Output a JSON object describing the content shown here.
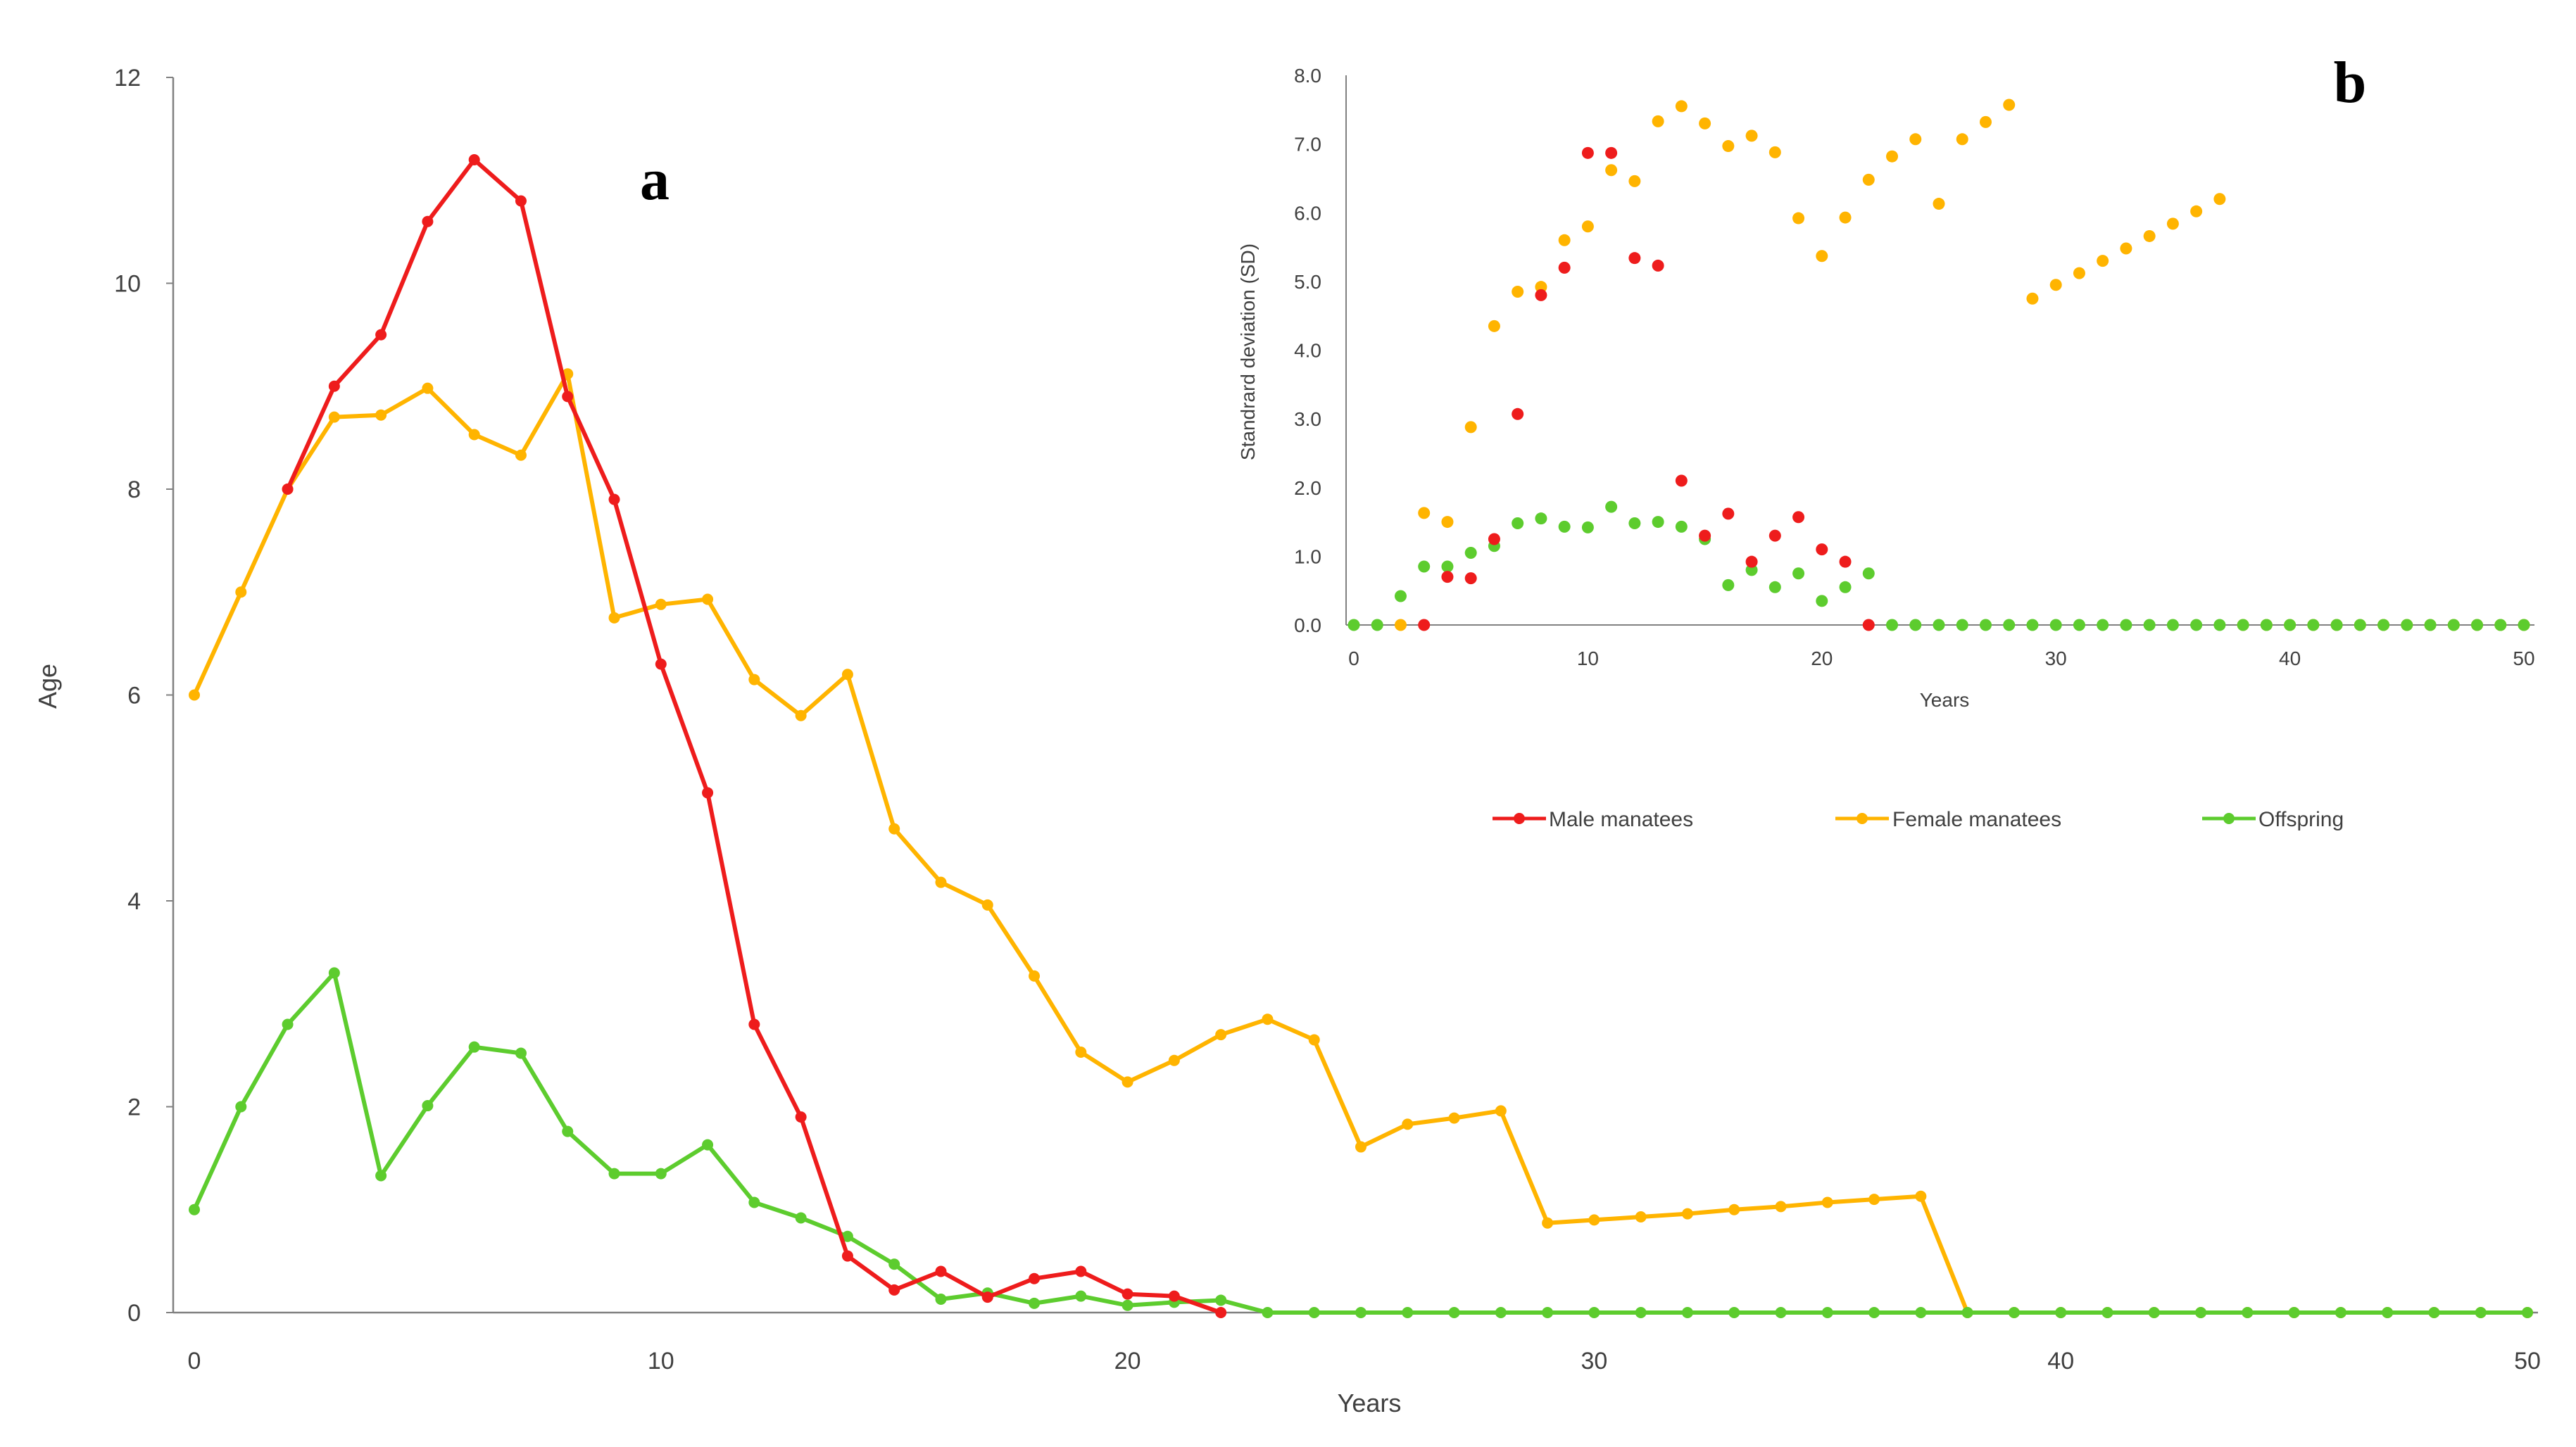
{
  "colors": {
    "male": "#ee1c1c",
    "female": "#ffb400",
    "offspring": "#5dcc2e",
    "axis": "#808080"
  },
  "legend": {
    "male_label": "Male manatees",
    "female_label": "Female manatees",
    "offspring_label": "Offspring"
  },
  "chart_data": [
    {
      "panel": "a",
      "type": "line",
      "title": "a",
      "xlabel": "Years",
      "ylabel": "Age",
      "xlim": [
        0,
        50
      ],
      "ylim": [
        0,
        12
      ],
      "xticks": [
        0,
        10,
        20,
        30,
        40,
        50
      ],
      "yticks": [
        0,
        2,
        4,
        6,
        8,
        10,
        12
      ],
      "series": [
        {
          "name": "Male manatees",
          "x": [
            2,
            3,
            4,
            5,
            6,
            7,
            8,
            9,
            10,
            11,
            12,
            13,
            14,
            15,
            16,
            17,
            18,
            19,
            20,
            21,
            22
          ],
          "values": [
            8.0,
            9.0,
            9.5,
            10.6,
            11.2,
            10.8,
            8.9,
            7.9,
            6.3,
            5.05,
            2.8,
            1.9,
            0.55,
            0.22,
            0.4,
            0.15,
            0.33,
            0.4,
            0.18,
            0.16,
            0
          ]
        },
        {
          "name": "Female manatees",
          "x": [
            0,
            1,
            2,
            3,
            4,
            5,
            6,
            7,
            8,
            9,
            10,
            11,
            12,
            13,
            14,
            15,
            16,
            17,
            18,
            19,
            20,
            21,
            22,
            23,
            24,
            25,
            26,
            27,
            28,
            29,
            30,
            31,
            32,
            33,
            34,
            35,
            36,
            37,
            38,
            39,
            40,
            41,
            42,
            43,
            44,
            45,
            46,
            47,
            48,
            49,
            50
          ],
          "values": [
            6.0,
            7.0,
            8.0,
            8.7,
            8.72,
            8.98,
            8.53,
            8.33,
            9.12,
            6.75,
            6.88,
            6.93,
            6.15,
            5.8,
            6.2,
            4.7,
            4.18,
            3.96,
            3.27,
            2.53,
            2.24,
            2.45,
            2.7,
            2.85,
            2.65,
            1.61,
            1.83,
            1.89,
            1.96,
            0.87,
            0.9,
            0.93,
            0.96,
            1.0,
            1.03,
            1.07,
            1.1,
            1.13,
            0,
            0,
            0,
            0,
            0,
            0,
            0,
            0,
            0,
            0,
            0,
            0,
            0
          ]
        },
        {
          "name": "Offspring",
          "x": [
            0,
            1,
            2,
            3,
            4,
            5,
            6,
            7,
            8,
            9,
            10,
            11,
            12,
            13,
            14,
            15,
            16,
            17,
            18,
            19,
            20,
            21,
            22,
            23,
            24,
            25,
            26,
            27,
            28,
            29,
            30,
            31,
            32,
            33,
            34,
            35,
            36,
            37,
            38,
            39,
            40,
            41,
            42,
            43,
            44,
            45,
            46,
            47,
            48,
            49,
            50
          ],
          "values": [
            1.0,
            2.0,
            2.8,
            3.3,
            1.33,
            2.01,
            2.58,
            2.52,
            1.76,
            1.35,
            1.35,
            1.63,
            1.07,
            0.92,
            0.74,
            0.47,
            0.13,
            0.19,
            0.09,
            0.16,
            0.07,
            0.1,
            0.12,
            0,
            0,
            0,
            0,
            0,
            0,
            0,
            0,
            0,
            0,
            0,
            0,
            0,
            0,
            0,
            0,
            0,
            0,
            0,
            0,
            0,
            0,
            0,
            0,
            0,
            0,
            0,
            0
          ]
        }
      ]
    },
    {
      "panel": "b",
      "type": "scatter",
      "title": "b",
      "xlabel": "Years",
      "ylabel": "Standrard deviation (SD)",
      "xlim": [
        0,
        50
      ],
      "ylim": [
        0,
        8
      ],
      "xticks": [
        0,
        10,
        20,
        30,
        40,
        50
      ],
      "yticks": [
        "0.0",
        "1.0",
        "2.0",
        "3.0",
        "4.0",
        "5.0",
        "6.0",
        "7.0",
        "8.0"
      ],
      "series": [
        {
          "name": "Male manatees",
          "x": [
            3,
            4,
            5,
            6,
            7,
            8,
            9,
            10,
            11,
            12,
            13,
            14,
            15,
            16,
            17,
            18,
            19,
            20,
            21,
            22
          ],
          "values": [
            0,
            0.7,
            0.68,
            1.25,
            3.07,
            4.8,
            5.2,
            6.87,
            6.87,
            5.34,
            5.23,
            2.1,
            1.3,
            1.62,
            0.92,
            1.3,
            1.57,
            1.1,
            0.92,
            0
          ]
        },
        {
          "name": "Female manatees",
          "x": [
            2,
            3,
            4,
            5,
            6,
            7,
            8,
            9,
            10,
            11,
            12,
            13,
            14,
            15,
            16,
            17,
            18,
            19,
            20,
            21,
            22,
            23,
            24,
            25,
            26,
            27,
            28,
            29,
            30,
            31,
            32,
            33,
            34,
            35,
            36,
            37,
            38,
            39,
            40,
            41,
            42,
            43,
            44,
            45,
            46,
            47,
            48,
            49,
            50
          ],
          "values": [
            0,
            1.63,
            1.5,
            2.88,
            4.35,
            4.85,
            4.92,
            5.6,
            5.8,
            6.62,
            6.46,
            7.33,
            7.55,
            7.3,
            6.97,
            7.12,
            6.88,
            5.92,
            5.37,
            5.93,
            6.48,
            6.82,
            7.07,
            6.13,
            7.07,
            7.32,
            7.57,
            4.75,
            4.95,
            5.12,
            5.3,
            5.48,
            5.66,
            5.84,
            6.02,
            6.2,
            0,
            0,
            0,
            0,
            0,
            0,
            0,
            0,
            0,
            0,
            0,
            0,
            0
          ]
        },
        {
          "name": "Offspring",
          "x": [
            0,
            1,
            2,
            3,
            4,
            5,
            6,
            7,
            8,
            9,
            10,
            11,
            12,
            13,
            14,
            15,
            16,
            17,
            18,
            19,
            20,
            21,
            22,
            23,
            24,
            25,
            26,
            27,
            28,
            29,
            30,
            31,
            32,
            33,
            34,
            35,
            36,
            37,
            38,
            39,
            40,
            41,
            42,
            43,
            44,
            45,
            46,
            47,
            48,
            49,
            50
          ],
          "values": [
            0,
            0,
            0.42,
            0.85,
            0.85,
            1.05,
            1.15,
            1.48,
            1.55,
            1.43,
            1.42,
            1.72,
            1.48,
            1.5,
            1.43,
            1.25,
            0.58,
            0.8,
            0.55,
            0.75,
            0.35,
            0.55,
            0.75,
            0,
            0,
            0,
            0,
            0,
            0,
            0,
            0,
            0,
            0,
            0,
            0,
            0,
            0,
            0,
            0,
            0,
            0,
            0,
            0,
            0,
            0,
            0,
            0,
            0,
            0,
            0,
            0
          ]
        }
      ]
    }
  ]
}
